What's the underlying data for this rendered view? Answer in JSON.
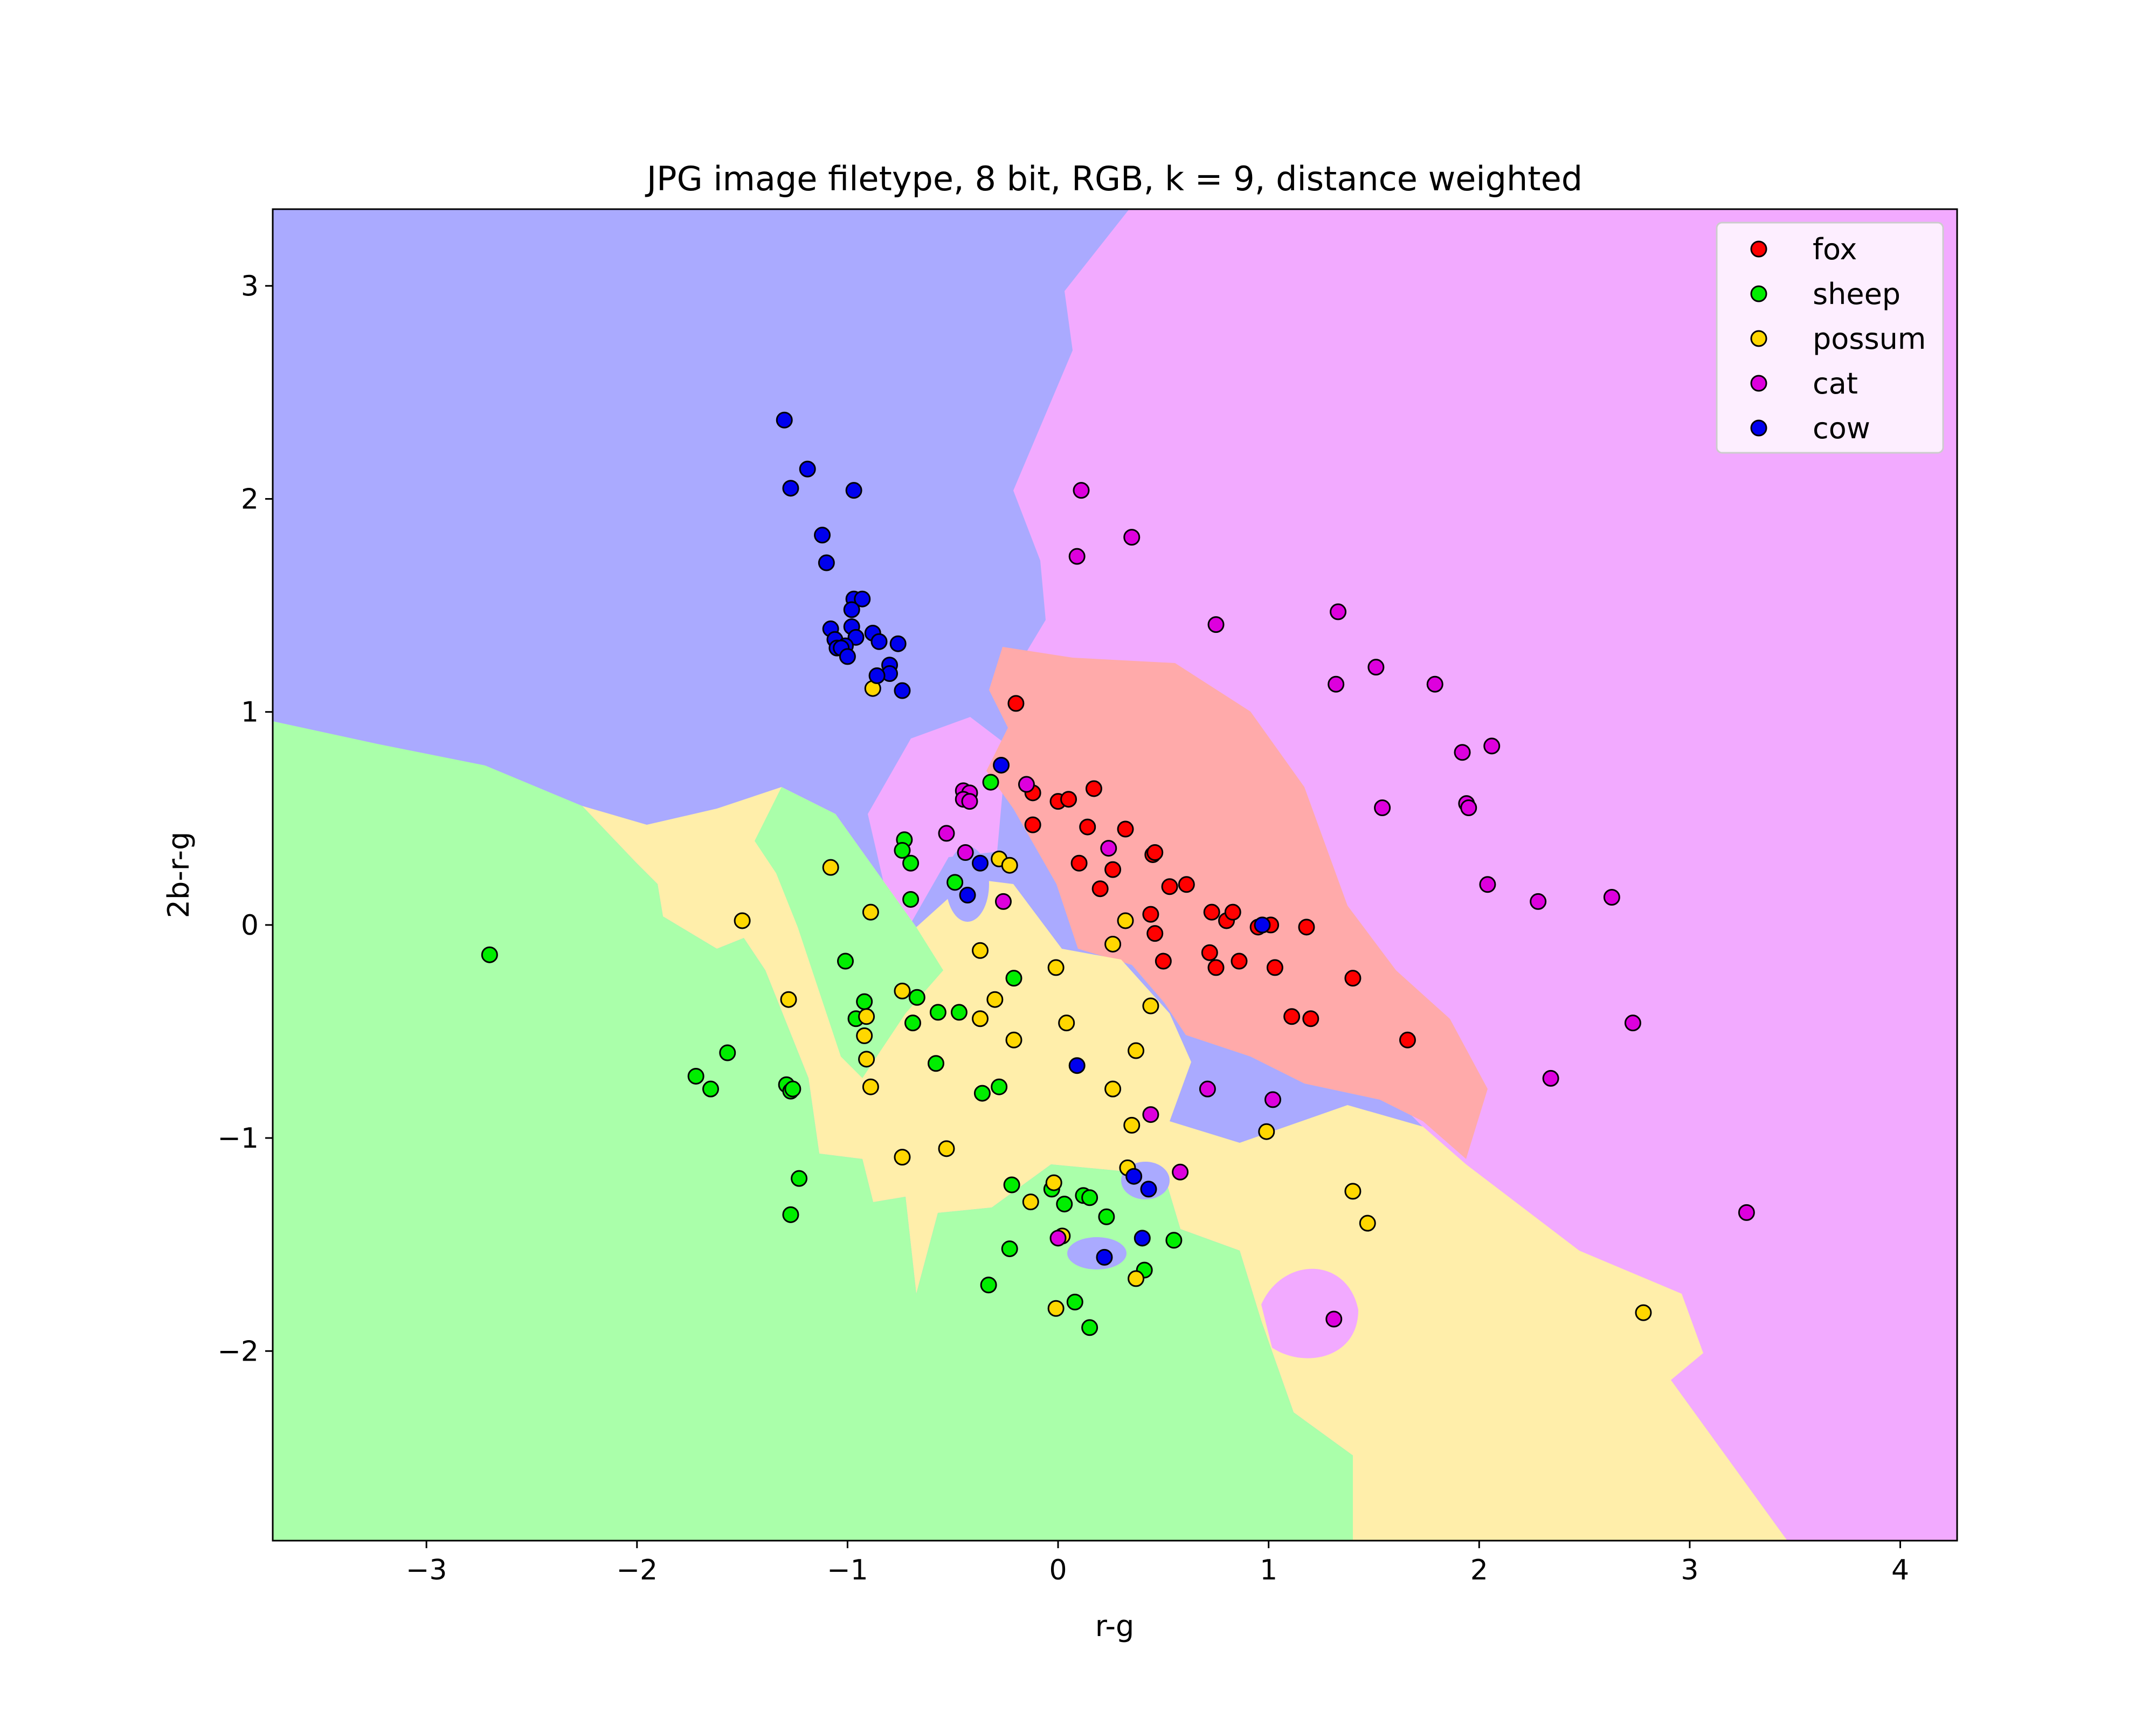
{
  "chart_data": {
    "type": "scatter",
    "title": "JPG image filetype, 8 bit, RGB, k = 9, distance weighted",
    "xlabel": "r-g",
    "ylabel": "2b-r-g",
    "xlim": [
      -3.73,
      4.27
    ],
    "ylim": [
      -2.89,
      3.36
    ],
    "xticks": [
      -3,
      -2,
      -1,
      0,
      1,
      2,
      3,
      4
    ],
    "xtick_labels": [
      "−3",
      "−2",
      "−1",
      "0",
      "1",
      "2",
      "3",
      "4"
    ],
    "yticks": [
      -2,
      -1,
      0,
      1,
      2,
      3
    ],
    "ytick_labels": [
      "−2",
      "−1",
      "0",
      "1",
      "2",
      "3"
    ],
    "grid": false,
    "legend_position": "top-right",
    "decision_regions": true,
    "series": [
      {
        "name": "fox",
        "color": "#ff0000",
        "region_color": "#ffaaaa",
        "points": [
          [
            -0.2,
            1.04
          ],
          [
            -0.12,
            0.62
          ],
          [
            0.0,
            0.58
          ],
          [
            0.05,
            0.59
          ],
          [
            0.17,
            0.64
          ],
          [
            -0.12,
            0.47
          ],
          [
            0.14,
            0.46
          ],
          [
            0.32,
            0.45
          ],
          [
            0.45,
            0.33
          ],
          [
            0.46,
            0.34
          ],
          [
            0.1,
            0.29
          ],
          [
            0.26,
            0.26
          ],
          [
            0.2,
            0.17
          ],
          [
            0.53,
            0.18
          ],
          [
            0.61,
            0.19
          ],
          [
            0.44,
            0.05
          ],
          [
            0.73,
            0.06
          ],
          [
            0.8,
            0.02
          ],
          [
            0.83,
            0.06
          ],
          [
            0.95,
            -0.01
          ],
          [
            1.01,
            0.0
          ],
          [
            1.18,
            -0.01
          ],
          [
            0.46,
            -0.04
          ],
          [
            0.72,
            -0.13
          ],
          [
            0.5,
            -0.17
          ],
          [
            0.75,
            -0.2
          ],
          [
            0.86,
            -0.17
          ],
          [
            1.03,
            -0.2
          ],
          [
            1.4,
            -0.25
          ],
          [
            1.11,
            -0.43
          ],
          [
            1.2,
            -0.44
          ],
          [
            1.66,
            -0.54
          ]
        ]
      },
      {
        "name": "sheep",
        "color": "#00ee00",
        "region_color": "#aaffaa",
        "points": [
          [
            -2.7,
            -0.14
          ],
          [
            -0.32,
            0.67
          ],
          [
            -0.73,
            0.4
          ],
          [
            -0.74,
            0.35
          ],
          [
            -0.7,
            0.29
          ],
          [
            -0.49,
            0.2
          ],
          [
            -0.7,
            0.12
          ],
          [
            -1.01,
            -0.17
          ],
          [
            -0.21,
            -0.25
          ],
          [
            -0.92,
            -0.36
          ],
          [
            -0.67,
            -0.34
          ],
          [
            -0.57,
            -0.41
          ],
          [
            -0.47,
            -0.41
          ],
          [
            -0.96,
            -0.44
          ],
          [
            -0.69,
            -0.46
          ],
          [
            -0.58,
            -0.65
          ],
          [
            -1.57,
            -0.6
          ],
          [
            -1.72,
            -0.71
          ],
          [
            -1.65,
            -0.77
          ],
          [
            -1.29,
            -0.75
          ],
          [
            -1.27,
            -0.78
          ],
          [
            -1.26,
            -0.77
          ],
          [
            -0.28,
            -0.76
          ],
          [
            -0.36,
            -0.79
          ],
          [
            -1.23,
            -1.19
          ],
          [
            -0.22,
            -1.22
          ],
          [
            -0.03,
            -1.24
          ],
          [
            0.12,
            -1.27
          ],
          [
            0.15,
            -1.28
          ],
          [
            0.03,
            -1.31
          ],
          [
            -1.27,
            -1.36
          ],
          [
            0.23,
            -1.37
          ],
          [
            0.55,
            -1.48
          ],
          [
            -0.23,
            -1.52
          ],
          [
            0.41,
            -1.62
          ],
          [
            -0.33,
            -1.69
          ],
          [
            0.08,
            -1.77
          ],
          [
            0.15,
            -1.89
          ]
        ]
      },
      {
        "name": "possum",
        "color": "#ffd700",
        "region_color": "#ffeeaa",
        "points": [
          [
            -0.88,
            1.11
          ],
          [
            -1.5,
            0.02
          ],
          [
            -1.08,
            0.27
          ],
          [
            -0.89,
            0.06
          ],
          [
            -0.28,
            0.31
          ],
          [
            -0.23,
            0.28
          ],
          [
            0.32,
            0.02
          ],
          [
            -0.37,
            -0.12
          ],
          [
            0.26,
            -0.09
          ],
          [
            -0.01,
            -0.2
          ],
          [
            -0.74,
            -0.31
          ],
          [
            -0.3,
            -0.35
          ],
          [
            -1.28,
            -0.35
          ],
          [
            0.44,
            -0.38
          ],
          [
            -0.91,
            -0.43
          ],
          [
            -0.37,
            -0.44
          ],
          [
            0.04,
            -0.46
          ],
          [
            -0.92,
            -0.52
          ],
          [
            -0.21,
            -0.54
          ],
          [
            0.37,
            -0.59
          ],
          [
            -0.91,
            -0.63
          ],
          [
            -0.89,
            -0.76
          ],
          [
            0.26,
            -0.77
          ],
          [
            0.35,
            -0.94
          ],
          [
            0.99,
            -0.97
          ],
          [
            -0.53,
            -1.05
          ],
          [
            -0.74,
            -1.09
          ],
          [
            0.33,
            -1.14
          ],
          [
            -0.02,
            -1.21
          ],
          [
            1.4,
            -1.25
          ],
          [
            -0.13,
            -1.3
          ],
          [
            1.47,
            -1.4
          ],
          [
            0.02,
            -1.46
          ],
          [
            0.37,
            -1.66
          ],
          [
            -0.01,
            -1.8
          ],
          [
            2.78,
            -1.82
          ]
        ]
      },
      {
        "name": "cat",
        "color": "#dd00dd",
        "region_color": "#f2aaff",
        "points": [
          [
            0.11,
            2.04
          ],
          [
            0.35,
            1.82
          ],
          [
            0.09,
            1.73
          ],
          [
            1.33,
            1.47
          ],
          [
            0.75,
            1.41
          ],
          [
            1.51,
            1.21
          ],
          [
            1.32,
            1.13
          ],
          [
            1.79,
            1.13
          ],
          [
            2.06,
            0.84
          ],
          [
            1.92,
            0.81
          ],
          [
            -0.15,
            0.66
          ],
          [
            -0.45,
            0.63
          ],
          [
            -0.42,
            0.62
          ],
          [
            -0.45,
            0.59
          ],
          [
            -0.42,
            0.58
          ],
          [
            1.54,
            0.55
          ],
          [
            1.94,
            0.57
          ],
          [
            1.95,
            0.55
          ],
          [
            -0.53,
            0.43
          ],
          [
            0.24,
            0.36
          ],
          [
            -0.44,
            0.34
          ],
          [
            2.04,
            0.19
          ],
          [
            -0.26,
            0.11
          ],
          [
            2.28,
            0.11
          ],
          [
            2.63,
            0.13
          ],
          [
            2.73,
            -0.46
          ],
          [
            2.34,
            -0.72
          ],
          [
            0.71,
            -0.77
          ],
          [
            1.02,
            -0.82
          ],
          [
            0.44,
            -0.89
          ],
          [
            0.58,
            -1.16
          ],
          [
            0.0,
            -1.47
          ],
          [
            3.27,
            -1.35
          ],
          [
            1.31,
            -1.85
          ]
        ]
      },
      {
        "name": "cow",
        "color": "#0000ee",
        "region_color": "#aaaaff",
        "points": [
          [
            -1.3,
            2.37
          ],
          [
            -1.19,
            2.14
          ],
          [
            -1.27,
            2.05
          ],
          [
            -0.97,
            2.04
          ],
          [
            -1.12,
            1.83
          ],
          [
            -1.1,
            1.7
          ],
          [
            -0.97,
            1.53
          ],
          [
            -0.93,
            1.53
          ],
          [
            -0.98,
            1.48
          ],
          [
            -1.08,
            1.39
          ],
          [
            -0.98,
            1.4
          ],
          [
            -1.06,
            1.34
          ],
          [
            -0.96,
            1.35
          ],
          [
            -0.88,
            1.37
          ],
          [
            -1.05,
            1.3
          ],
          [
            -1.01,
            1.31
          ],
          [
            -1.03,
            1.3
          ],
          [
            -0.85,
            1.33
          ],
          [
            -0.76,
            1.32
          ],
          [
            -1.0,
            1.26
          ],
          [
            -0.8,
            1.22
          ],
          [
            -0.8,
            1.18
          ],
          [
            -0.86,
            1.17
          ],
          [
            -0.74,
            1.1
          ],
          [
            -0.27,
            0.75
          ],
          [
            -0.37,
            0.29
          ],
          [
            -0.43,
            0.14
          ],
          [
            0.97,
            0.0
          ],
          [
            0.09,
            -0.66
          ],
          [
            0.36,
            -1.18
          ],
          [
            0.43,
            -1.24
          ],
          [
            0.4,
            -1.47
          ],
          [
            0.22,
            -1.56
          ]
        ]
      }
    ]
  }
}
